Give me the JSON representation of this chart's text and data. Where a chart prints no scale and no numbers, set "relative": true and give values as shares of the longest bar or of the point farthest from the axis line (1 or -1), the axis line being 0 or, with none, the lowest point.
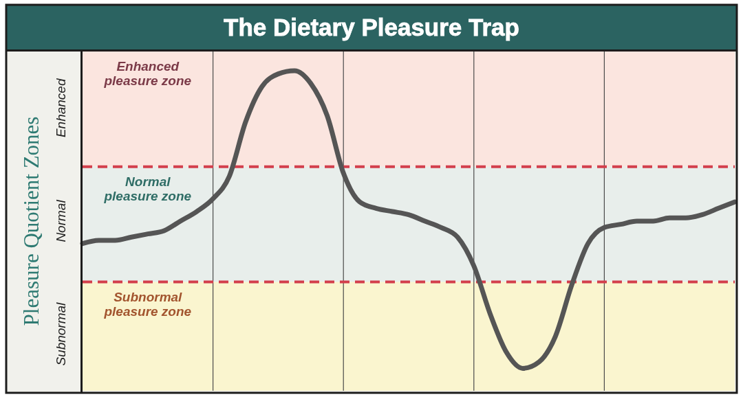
{
  "chart_data": {
    "type": "line",
    "title": "The Dietary Pleasure Trap",
    "ylabel": "Pleasure Quotient Zones",
    "relative": true,
    "categories": [
      null,
      null,
      null,
      null,
      null,
      null,
      null,
      null,
      null,
      null,
      null,
      null,
      null,
      null,
      null,
      null,
      null,
      null,
      null,
      null,
      null,
      null,
      null,
      null,
      null,
      null,
      null,
      null,
      null,
      null,
      null,
      null,
      null,
      null,
      null,
      null,
      null,
      null,
      null,
      null,
      null
    ],
    "values": [
      0.46,
      0.47,
      0.47,
      0.48,
      0.49,
      0.5,
      0.53,
      0.56,
      0.6,
      0.67,
      0.84,
      0.95,
      0.99,
      1.0,
      0.96,
      0.86,
      0.68,
      0.59,
      0.57,
      0.56,
      0.55,
      0.53,
      0.51,
      0.48,
      0.39,
      0.24,
      0.12,
      0.07,
      0.09,
      0.17,
      0.33,
      0.46,
      0.51,
      0.52,
      0.53,
      0.53,
      0.54,
      0.54,
      0.55,
      0.57,
      0.59
    ],
    "color": "#555555",
    "grid": "x",
    "bands": [
      {
        "axis": "y",
        "from": 0.7,
        "to": 1.06,
        "label": "Enhanced pleasure zone",
        "color": "#fbe5df"
      },
      {
        "axis": "y",
        "from": 0.34,
        "to": 0.7,
        "label": "Normal pleasure zone",
        "color": "#e8eeeb"
      },
      {
        "axis": "y",
        "from": 0,
        "to": 0.34,
        "label": "Subnormal pleasure zone",
        "color": "#faf5cf"
      }
    ],
    "ref_lines": [
      {
        "axis": "y",
        "value": 0.7,
        "color": "#d33f4c",
        "line_style": "dashed"
      },
      {
        "axis": "y",
        "value": 0.34,
        "color": "#d33f4c",
        "line_style": "dashed"
      }
    ],
    "annotations": [
      "Enhanced",
      "Normal",
      "Subnormal"
    ]
  }
}
